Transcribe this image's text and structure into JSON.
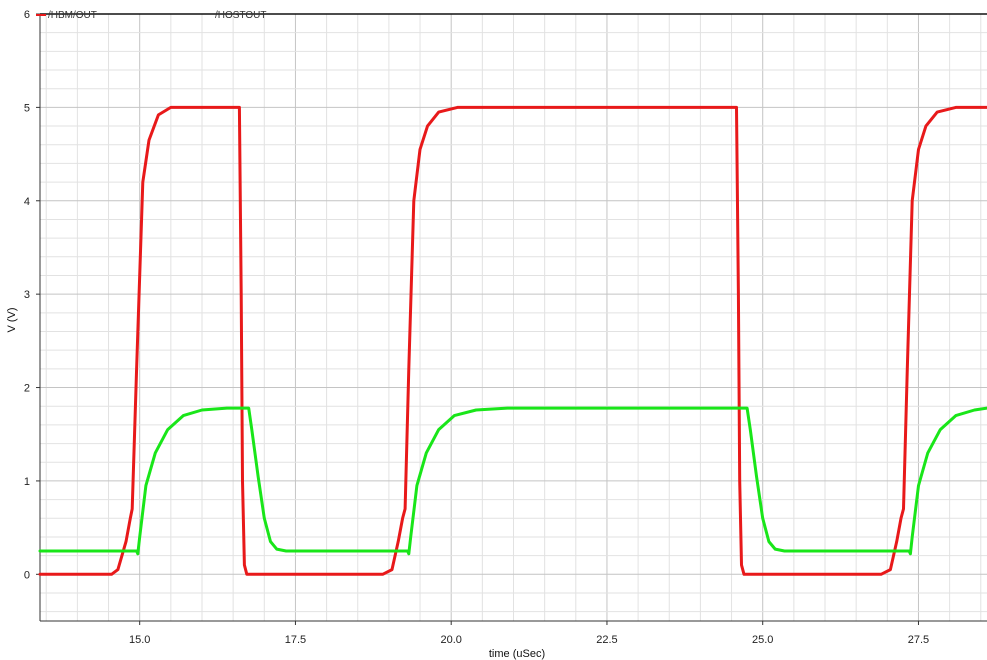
{
  "chart_data": {
    "type": "line",
    "title": "",
    "xlabel": "time (uSec)",
    "ylabel": "V (V)",
    "xlim": [
      13.4,
      28.6
    ],
    "ylim": [
      -0.5,
      6.0
    ],
    "x_ticks": [
      "15.0",
      "17.5",
      "20.0",
      "22.5",
      "25.0",
      "27.5"
    ],
    "y_ticks": [
      "0",
      "1",
      "2",
      "3",
      "4",
      "5",
      "6"
    ],
    "grid": true,
    "legend_position": "top-left",
    "series": [
      {
        "name": "/HBM/OUT",
        "color": "#e8191a",
        "x": [
          13.4,
          14.55,
          14.65,
          14.78,
          14.85,
          14.88,
          14.95,
          15.05,
          15.15,
          15.3,
          15.5,
          16.6,
          16.63,
          16.65,
          16.68,
          16.72,
          18.9,
          19.05,
          19.15,
          19.22,
          19.26,
          19.32,
          19.4,
          19.5,
          19.62,
          19.8,
          20.1,
          24.58,
          24.61,
          24.63,
          24.66,
          24.7,
          26.9,
          27.05,
          27.15,
          27.22,
          27.26,
          27.32,
          27.4,
          27.5,
          27.62,
          27.8,
          28.1,
          28.6
        ],
        "y": [
          0.0,
          0.0,
          0.05,
          0.35,
          0.6,
          0.7,
          2.2,
          4.2,
          4.65,
          4.92,
          5.0,
          5.0,
          3.0,
          1.0,
          0.1,
          0.0,
          0.0,
          0.05,
          0.35,
          0.6,
          0.7,
          2.2,
          4.0,
          4.55,
          4.8,
          4.95,
          5.0,
          5.0,
          3.0,
          1.0,
          0.1,
          0.0,
          0.0,
          0.05,
          0.35,
          0.6,
          0.7,
          2.2,
          4.0,
          4.55,
          4.8,
          4.95,
          5.0,
          5.0
        ]
      },
      {
        "name": "/HOSTOUT",
        "color": "#19e619",
        "x": [
          13.4,
          14.95,
          14.97,
          15.0,
          15.1,
          15.25,
          15.45,
          15.7,
          16.0,
          16.4,
          16.75,
          16.8,
          16.9,
          17.0,
          17.1,
          17.2,
          17.35,
          19.3,
          19.32,
          19.35,
          19.45,
          19.6,
          19.8,
          20.05,
          20.4,
          20.9,
          24.75,
          24.8,
          24.9,
          25.0,
          25.1,
          25.2,
          25.35,
          27.35,
          27.37,
          27.4,
          27.5,
          27.65,
          27.85,
          28.1,
          28.4,
          28.6
        ],
        "y": [
          0.25,
          0.25,
          0.22,
          0.4,
          0.95,
          1.3,
          1.55,
          1.7,
          1.76,
          1.78,
          1.78,
          1.55,
          1.05,
          0.6,
          0.35,
          0.27,
          0.25,
          0.25,
          0.22,
          0.4,
          0.95,
          1.3,
          1.55,
          1.7,
          1.76,
          1.78,
          1.78,
          1.55,
          1.05,
          0.6,
          0.35,
          0.27,
          0.25,
          0.25,
          0.22,
          0.4,
          0.95,
          1.3,
          1.55,
          1.7,
          1.76,
          1.78
        ]
      }
    ]
  }
}
